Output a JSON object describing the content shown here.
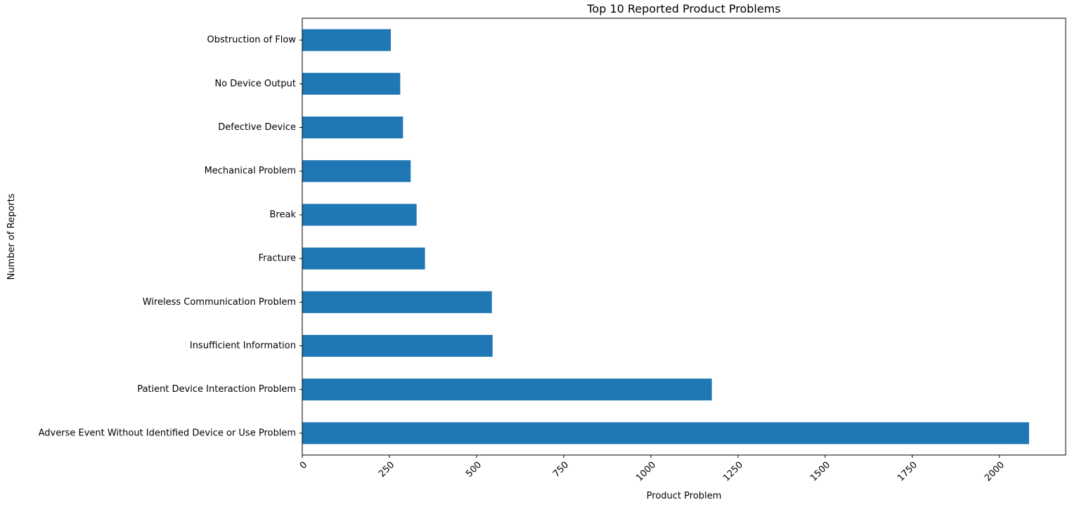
{
  "chart_data": {
    "type": "bar",
    "orientation": "horizontal",
    "title": "Top 10 Reported Product Problems",
    "xlabel": "Product Problem",
    "ylabel": "Number of Reports",
    "categories": [
      "Adverse Event Without Identified Device or Use Problem",
      "Patient Device Interaction Problem",
      "Insufficient Information",
      "Wireless Communication Problem",
      "Fracture",
      "Break",
      "Mechanical Problem",
      "Defective Device",
      "No Device Output",
      "Obstruction of Flow"
    ],
    "values": [
      2085,
      1175,
      546,
      544,
      352,
      328,
      311,
      289,
      281,
      254
    ],
    "xlim": [
      0,
      2190
    ],
    "xticks": [
      0,
      250,
      500,
      750,
      1000,
      1250,
      1500,
      1750,
      2000
    ],
    "xtick_rotation": 45,
    "grid": false,
    "legend": "none",
    "bar_color": "#1f77b4"
  }
}
